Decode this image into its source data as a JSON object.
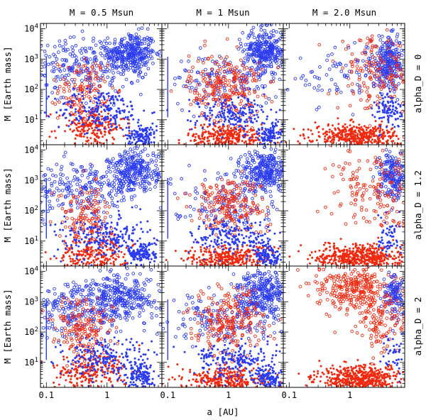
{
  "chart_data": {
    "type": "scatter",
    "xlabel": "a [AU]",
    "ylabel": "M [Earth mass]",
    "xscale": "log",
    "yscale": "log",
    "xlim": [
      0.08,
      8
    ],
    "ylim": [
      1.5,
      15000
    ],
    "x_ticks": [
      {
        "value": 0.1,
        "label": "0.1"
      },
      {
        "value": 1,
        "label": "1"
      }
    ],
    "y_ticks": [
      {
        "value": 10,
        "label": "10",
        "exp": "1"
      },
      {
        "value": 100,
        "label": "10",
        "exp": "2"
      },
      {
        "value": 1000,
        "label": "10",
        "exp": "3"
      },
      {
        "value": 10000,
        "label": "10",
        "exp": "4"
      }
    ],
    "columns": [
      "M = 0.5 Msun",
      "M = 1 Msun",
      "M = 2.0 Msun"
    ],
    "rows": [
      "alpha_D = 0",
      "alpha_D = 1.2",
      "alpha_D = 2"
    ],
    "series_colors": {
      "blue": "#2b3cf0",
      "red": "#f02a10"
    },
    "panels": [
      {
        "row": 0,
        "col": 0,
        "clusters": [
          {
            "color": "blue",
            "ring": true,
            "n": 300,
            "x": [
              2.5,
              0.2
            ],
            "y": [
              1500,
              0.35
            ]
          },
          {
            "color": "blue",
            "ring": true,
            "n": 260,
            "x": [
              0.45,
              0.5
            ],
            "y": [
              600,
              0.45
            ]
          },
          {
            "color": "red",
            "ring": true,
            "n": 120,
            "x": [
              0.4,
              0.2
            ],
            "y": [
              100,
              0.5
            ]
          },
          {
            "color": "red",
            "ring": false,
            "n": 220,
            "x": [
              0.55,
              0.28
            ],
            "y": [
              6,
              0.35
            ]
          },
          {
            "color": "blue",
            "ring": false,
            "n": 220,
            "x": [
              0.8,
              0.38
            ],
            "y": [
              20,
              0.35
            ]
          },
          {
            "color": "blue",
            "ring": false,
            "n": 130,
            "x": [
              3.8,
              0.12
            ],
            "y": [
              3,
              0.2
            ]
          }
        ]
      },
      {
        "row": 0,
        "col": 1,
        "clusters": [
          {
            "color": "blue",
            "ring": true,
            "n": 300,
            "x": [
              4,
              0.18
            ],
            "y": [
              2000,
              0.35
            ]
          },
          {
            "color": "blue",
            "ring": true,
            "n": 150,
            "x": [
              0.9,
              0.45
            ],
            "y": [
              200,
              0.45
            ]
          },
          {
            "color": "red",
            "ring": true,
            "n": 240,
            "x": [
              0.9,
              0.3
            ],
            "y": [
              120,
              0.55
            ]
          },
          {
            "color": "red",
            "ring": false,
            "n": 320,
            "x": [
              1.0,
              0.35
            ],
            "y": [
              2.6,
              0.22
            ]
          },
          {
            "color": "blue",
            "ring": false,
            "n": 200,
            "x": [
              1.3,
              0.35
            ],
            "y": [
              15,
              0.3
            ]
          },
          {
            "color": "blue",
            "ring": false,
            "n": 120,
            "x": [
              4.5,
              0.12
            ],
            "y": [
              3,
              0.2
            ]
          }
        ]
      },
      {
        "row": 0,
        "col": 2,
        "clusters": [
          {
            "color": "blue",
            "ring": true,
            "n": 260,
            "x": [
              4.5,
              0.15
            ],
            "y": [
              800,
              0.4
            ]
          },
          {
            "color": "red",
            "ring": true,
            "n": 160,
            "x": [
              2.5,
              0.3
            ],
            "y": [
              300,
              0.6
            ]
          },
          {
            "color": "blue",
            "ring": true,
            "n": 80,
            "x": [
              0.8,
              0.4
            ],
            "y": [
              300,
              0.5
            ]
          },
          {
            "color": "red",
            "ring": false,
            "n": 450,
            "x": [
              1.3,
              0.35
            ],
            "y": [
              2.8,
              0.2
            ]
          },
          {
            "color": "blue",
            "ring": false,
            "n": 100,
            "x": [
              4.5,
              0.12
            ],
            "y": [
              20,
              0.3
            ]
          }
        ]
      },
      {
        "row": 1,
        "col": 0,
        "clusters": [
          {
            "color": "blue",
            "ring": true,
            "n": 280,
            "x": [
              2.8,
              0.2
            ],
            "y": [
              2000,
              0.35
            ]
          },
          {
            "color": "blue",
            "ring": true,
            "n": 250,
            "x": [
              0.4,
              0.5
            ],
            "y": [
              500,
              0.45
            ]
          },
          {
            "color": "red",
            "ring": true,
            "n": 140,
            "x": [
              0.45,
              0.22
            ],
            "y": [
              60,
              0.5
            ]
          },
          {
            "color": "red",
            "ring": false,
            "n": 250,
            "x": [
              0.6,
              0.3
            ],
            "y": [
              3.5,
              0.3
            ]
          },
          {
            "color": "blue",
            "ring": false,
            "n": 220,
            "x": [
              0.8,
              0.38
            ],
            "y": [
              14,
              0.35
            ]
          },
          {
            "color": "blue",
            "ring": false,
            "n": 140,
            "x": [
              3.8,
              0.12
            ],
            "y": [
              4,
              0.2
            ]
          }
        ]
      },
      {
        "row": 1,
        "col": 1,
        "clusters": [
          {
            "color": "blue",
            "ring": true,
            "n": 300,
            "x": [
              4,
              0.18
            ],
            "y": [
              2000,
              0.35
            ]
          },
          {
            "color": "blue",
            "ring": true,
            "n": 140,
            "x": [
              0.9,
              0.45
            ],
            "y": [
              250,
              0.45
            ]
          },
          {
            "color": "red",
            "ring": true,
            "n": 220,
            "x": [
              1.0,
              0.3
            ],
            "y": [
              150,
              0.5
            ]
          },
          {
            "color": "red",
            "ring": false,
            "n": 330,
            "x": [
              1.0,
              0.35
            ],
            "y": [
              2.6,
              0.22
            ]
          },
          {
            "color": "blue",
            "ring": false,
            "n": 200,
            "x": [
              1.3,
              0.35
            ],
            "y": [
              15,
              0.3
            ]
          },
          {
            "color": "blue",
            "ring": false,
            "n": 120,
            "x": [
              4.5,
              0.12
            ],
            "y": [
              3,
              0.2
            ]
          }
        ]
      },
      {
        "row": 1,
        "col": 2,
        "clusters": [
          {
            "color": "blue",
            "ring": true,
            "n": 200,
            "x": [
              5,
              0.12
            ],
            "y": [
              1500,
              0.4
            ]
          },
          {
            "color": "red",
            "ring": true,
            "n": 160,
            "x": [
              2.5,
              0.35
            ],
            "y": [
              400,
              0.7
            ]
          },
          {
            "color": "red",
            "ring": false,
            "n": 500,
            "x": [
              1.4,
              0.35
            ],
            "y": [
              3.0,
              0.2
            ]
          },
          {
            "color": "blue",
            "ring": false,
            "n": 60,
            "x": [
              4.5,
              0.12
            ],
            "y": [
              15,
              0.3
            ]
          }
        ]
      },
      {
        "row": 2,
        "col": 0,
        "clusters": [
          {
            "color": "blue",
            "ring": true,
            "n": 300,
            "x": [
              1.8,
              0.3
            ],
            "y": [
              1500,
              0.4
            ]
          },
          {
            "color": "blue",
            "ring": true,
            "n": 250,
            "x": [
              0.35,
              0.45
            ],
            "y": [
              500,
              0.45
            ]
          },
          {
            "color": "red",
            "ring": true,
            "n": 170,
            "x": [
              0.4,
              0.25
            ],
            "y": [
              120,
              0.55
            ]
          },
          {
            "color": "red",
            "ring": false,
            "n": 250,
            "x": [
              0.5,
              0.3
            ],
            "y": [
              5,
              0.35
            ]
          },
          {
            "color": "blue",
            "ring": false,
            "n": 220,
            "x": [
              0.9,
              0.4
            ],
            "y": [
              12,
              0.35
            ]
          },
          {
            "color": "blue",
            "ring": false,
            "n": 130,
            "x": [
              3.8,
              0.12
            ],
            "y": [
              3.5,
              0.2
            ]
          }
        ]
      },
      {
        "row": 2,
        "col": 1,
        "clusters": [
          {
            "color": "blue",
            "ring": true,
            "n": 300,
            "x": [
              3.5,
              0.2
            ],
            "y": [
              2000,
              0.35
            ]
          },
          {
            "color": "blue",
            "ring": true,
            "n": 160,
            "x": [
              0.9,
              0.45
            ],
            "y": [
              250,
              0.45
            ]
          },
          {
            "color": "red",
            "ring": true,
            "n": 240,
            "x": [
              1.0,
              0.3
            ],
            "y": [
              200,
              0.55
            ]
          },
          {
            "color": "red",
            "ring": false,
            "n": 330,
            "x": [
              1.0,
              0.35
            ],
            "y": [
              2.6,
              0.22
            ]
          },
          {
            "color": "blue",
            "ring": false,
            "n": 200,
            "x": [
              1.4,
              0.35
            ],
            "y": [
              12,
              0.3
            ]
          },
          {
            "color": "blue",
            "ring": false,
            "n": 120,
            "x": [
              4.5,
              0.12
            ],
            "y": [
              3,
              0.2
            ]
          }
        ]
      },
      {
        "row": 2,
        "col": 2,
        "clusters": [
          {
            "color": "red",
            "ring": true,
            "n": 300,
            "x": [
              1.2,
              0.3
            ],
            "y": [
              3000,
              0.4
            ]
          },
          {
            "color": "blue",
            "ring": true,
            "n": 120,
            "x": [
              5.5,
              0.1
            ],
            "y": [
              1500,
              0.4
            ]
          },
          {
            "color": "red",
            "ring": true,
            "n": 120,
            "x": [
              3.5,
              0.2
            ],
            "y": [
              200,
              0.5
            ]
          },
          {
            "color": "red",
            "ring": false,
            "n": 500,
            "x": [
              1.5,
              0.35
            ],
            "y": [
              3.0,
              0.2
            ]
          },
          {
            "color": "blue",
            "ring": false,
            "n": 40,
            "x": [
              5,
              0.1
            ],
            "y": [
              20,
              0.3
            ]
          }
        ]
      }
    ]
  }
}
